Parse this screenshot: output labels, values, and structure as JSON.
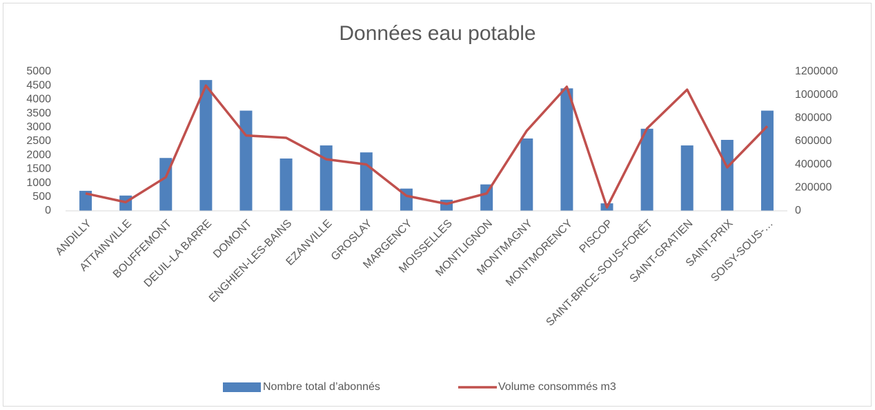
{
  "chart_data": {
    "type": "bar_line",
    "title": "Données eau potable",
    "categories": [
      "ANDILLY",
      "ATTAINVILLE",
      "BOUFFEMONT",
      "DEUIL-LA BARRE",
      "DOMONT",
      "ENGHIEN-LES-BAINS",
      "EZANVILLE",
      "GROSLAY",
      "MARGENCY",
      "MOISSELLES",
      "MONTLIGNON",
      "MONTMAGNY",
      "MONTMORENCY",
      "PISCOP",
      "SAINT-BRICE-SOUS-FORÊT",
      "SAINT-GRATIEN",
      "SAINT-PRIX",
      "SOISY-SOUS-…"
    ],
    "series": [
      {
        "name": "Nombre total d’abonnés",
        "type": "bar",
        "color": "#4f81bd",
        "values": [
          720,
          550,
          1900,
          4700,
          3600,
          1880,
          2350,
          2100,
          800,
          400,
          950,
          2600,
          4400,
          270,
          2950,
          2350,
          2550,
          3600
        ]
      },
      {
        "name": "Volume consommés m3",
        "type": "line",
        "axis": "y2",
        "color": "#c0504d",
        "values": [
          150000,
          75000,
          290000,
          1080000,
          650000,
          630000,
          445000,
          400000,
          130000,
          60000,
          150000,
          690000,
          1070000,
          30000,
          710000,
          1045000,
          375000,
          730000
        ]
      }
    ],
    "ylim": [
      0,
      5000
    ],
    "yticks": [
      0,
      500,
      1000,
      1500,
      2000,
      2500,
      3000,
      3500,
      4000,
      4500,
      5000
    ],
    "y2lim": [
      0,
      1200000
    ],
    "y2ticks": [
      0,
      200000,
      400000,
      600000,
      800000,
      1000000,
      1200000
    ],
    "grid": false,
    "legend": "bottom"
  }
}
